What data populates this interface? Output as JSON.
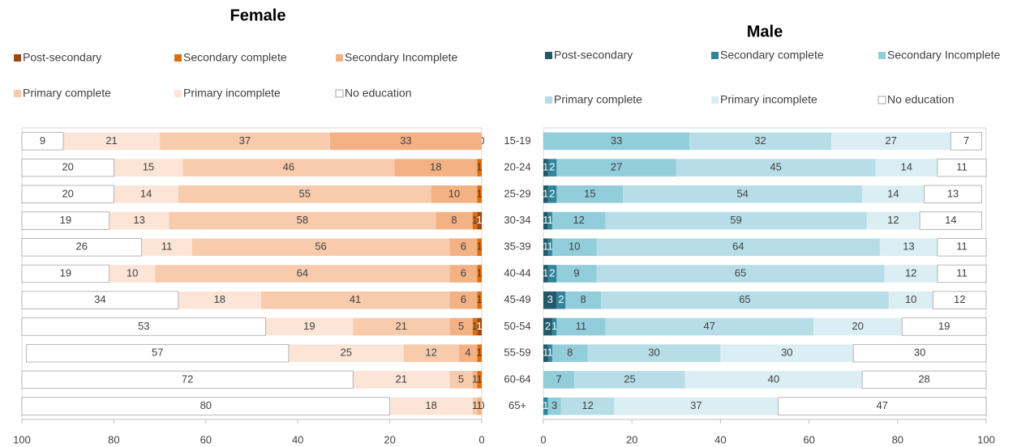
{
  "chart_data": [
    {
      "type": "bar",
      "orientation": "horizontal",
      "stacked": true,
      "title": "Female",
      "xlim": [
        100,
        0
      ],
      "xticks": [
        100,
        80,
        60,
        40,
        20,
        0
      ],
      "grid": false,
      "series": [
        {
          "name": "Post-secondary",
          "color": "#9c4a14",
          "values": [
            0,
            0,
            0,
            1,
            0,
            0,
            0,
            1,
            0,
            0,
            0
          ]
        },
        {
          "name": "Secondary complete",
          "color": "#e36c0a",
          "values": [
            0,
            1,
            1,
            1,
            1,
            1,
            1,
            1,
            1,
            1,
            0
          ]
        },
        {
          "name": "Secondary Incomplete",
          "color": "#f4b183",
          "values": [
            33,
            18,
            10,
            8,
            6,
            6,
            6,
            5,
            4,
            1,
            1
          ]
        },
        {
          "name": "Primary complete",
          "color": "#f8cbad",
          "values": [
            37,
            46,
            55,
            58,
            56,
            64,
            41,
            21,
            12,
            5,
            1
          ]
        },
        {
          "name": "Primary incomplete",
          "color": "#fce4d6",
          "values": [
            21,
            15,
            14,
            13,
            11,
            10,
            18,
            19,
            25,
            21,
            18
          ]
        },
        {
          "name": "No education",
          "color": "#ffffff",
          "values": [
            9,
            20,
            20,
            19,
            26,
            19,
            34,
            53,
            57,
            72,
            80
          ]
        }
      ]
    },
    {
      "type": "bar",
      "orientation": "horizontal",
      "stacked": true,
      "title": "Male",
      "categories": [
        "15-19",
        "20-24",
        "25-29",
        "30-34",
        "35-39",
        "40-44",
        "45-49",
        "50-54",
        "55-59",
        "60-64",
        "65+"
      ],
      "xlim": [
        0,
        100
      ],
      "xticks": [
        0,
        20,
        40,
        60,
        80,
        100
      ],
      "grid": false,
      "series": [
        {
          "name": "Post-secondary",
          "color": "#215968",
          "values": [
            0,
            1,
            1,
            1,
            1,
            1,
            3,
            2,
            1,
            0,
            0
          ]
        },
        {
          "name": "Secondary complete",
          "color": "#31849b",
          "values": [
            0,
            2,
            2,
            1,
            1,
            2,
            2,
            1,
            1,
            0,
            1
          ]
        },
        {
          "name": "Secondary Incomplete",
          "color": "#92cddc",
          "values": [
            33,
            27,
            15,
            12,
            10,
            9,
            8,
            11,
            8,
            7,
            3
          ]
        },
        {
          "name": "Primary complete",
          "color": "#b7dee8",
          "values": [
            32,
            45,
            54,
            59,
            64,
            65,
            65,
            47,
            30,
            25,
            12
          ]
        },
        {
          "name": "Primary incomplete",
          "color": "#daeef3",
          "values": [
            27,
            14,
            14,
            12,
            13,
            12,
            10,
            20,
            30,
            40,
            37
          ]
        },
        {
          "name": "No education",
          "color": "#ffffff",
          "values": [
            7,
            11,
            13,
            14,
            11,
            11,
            12,
            19,
            30,
            28,
            47
          ]
        }
      ]
    }
  ]
}
